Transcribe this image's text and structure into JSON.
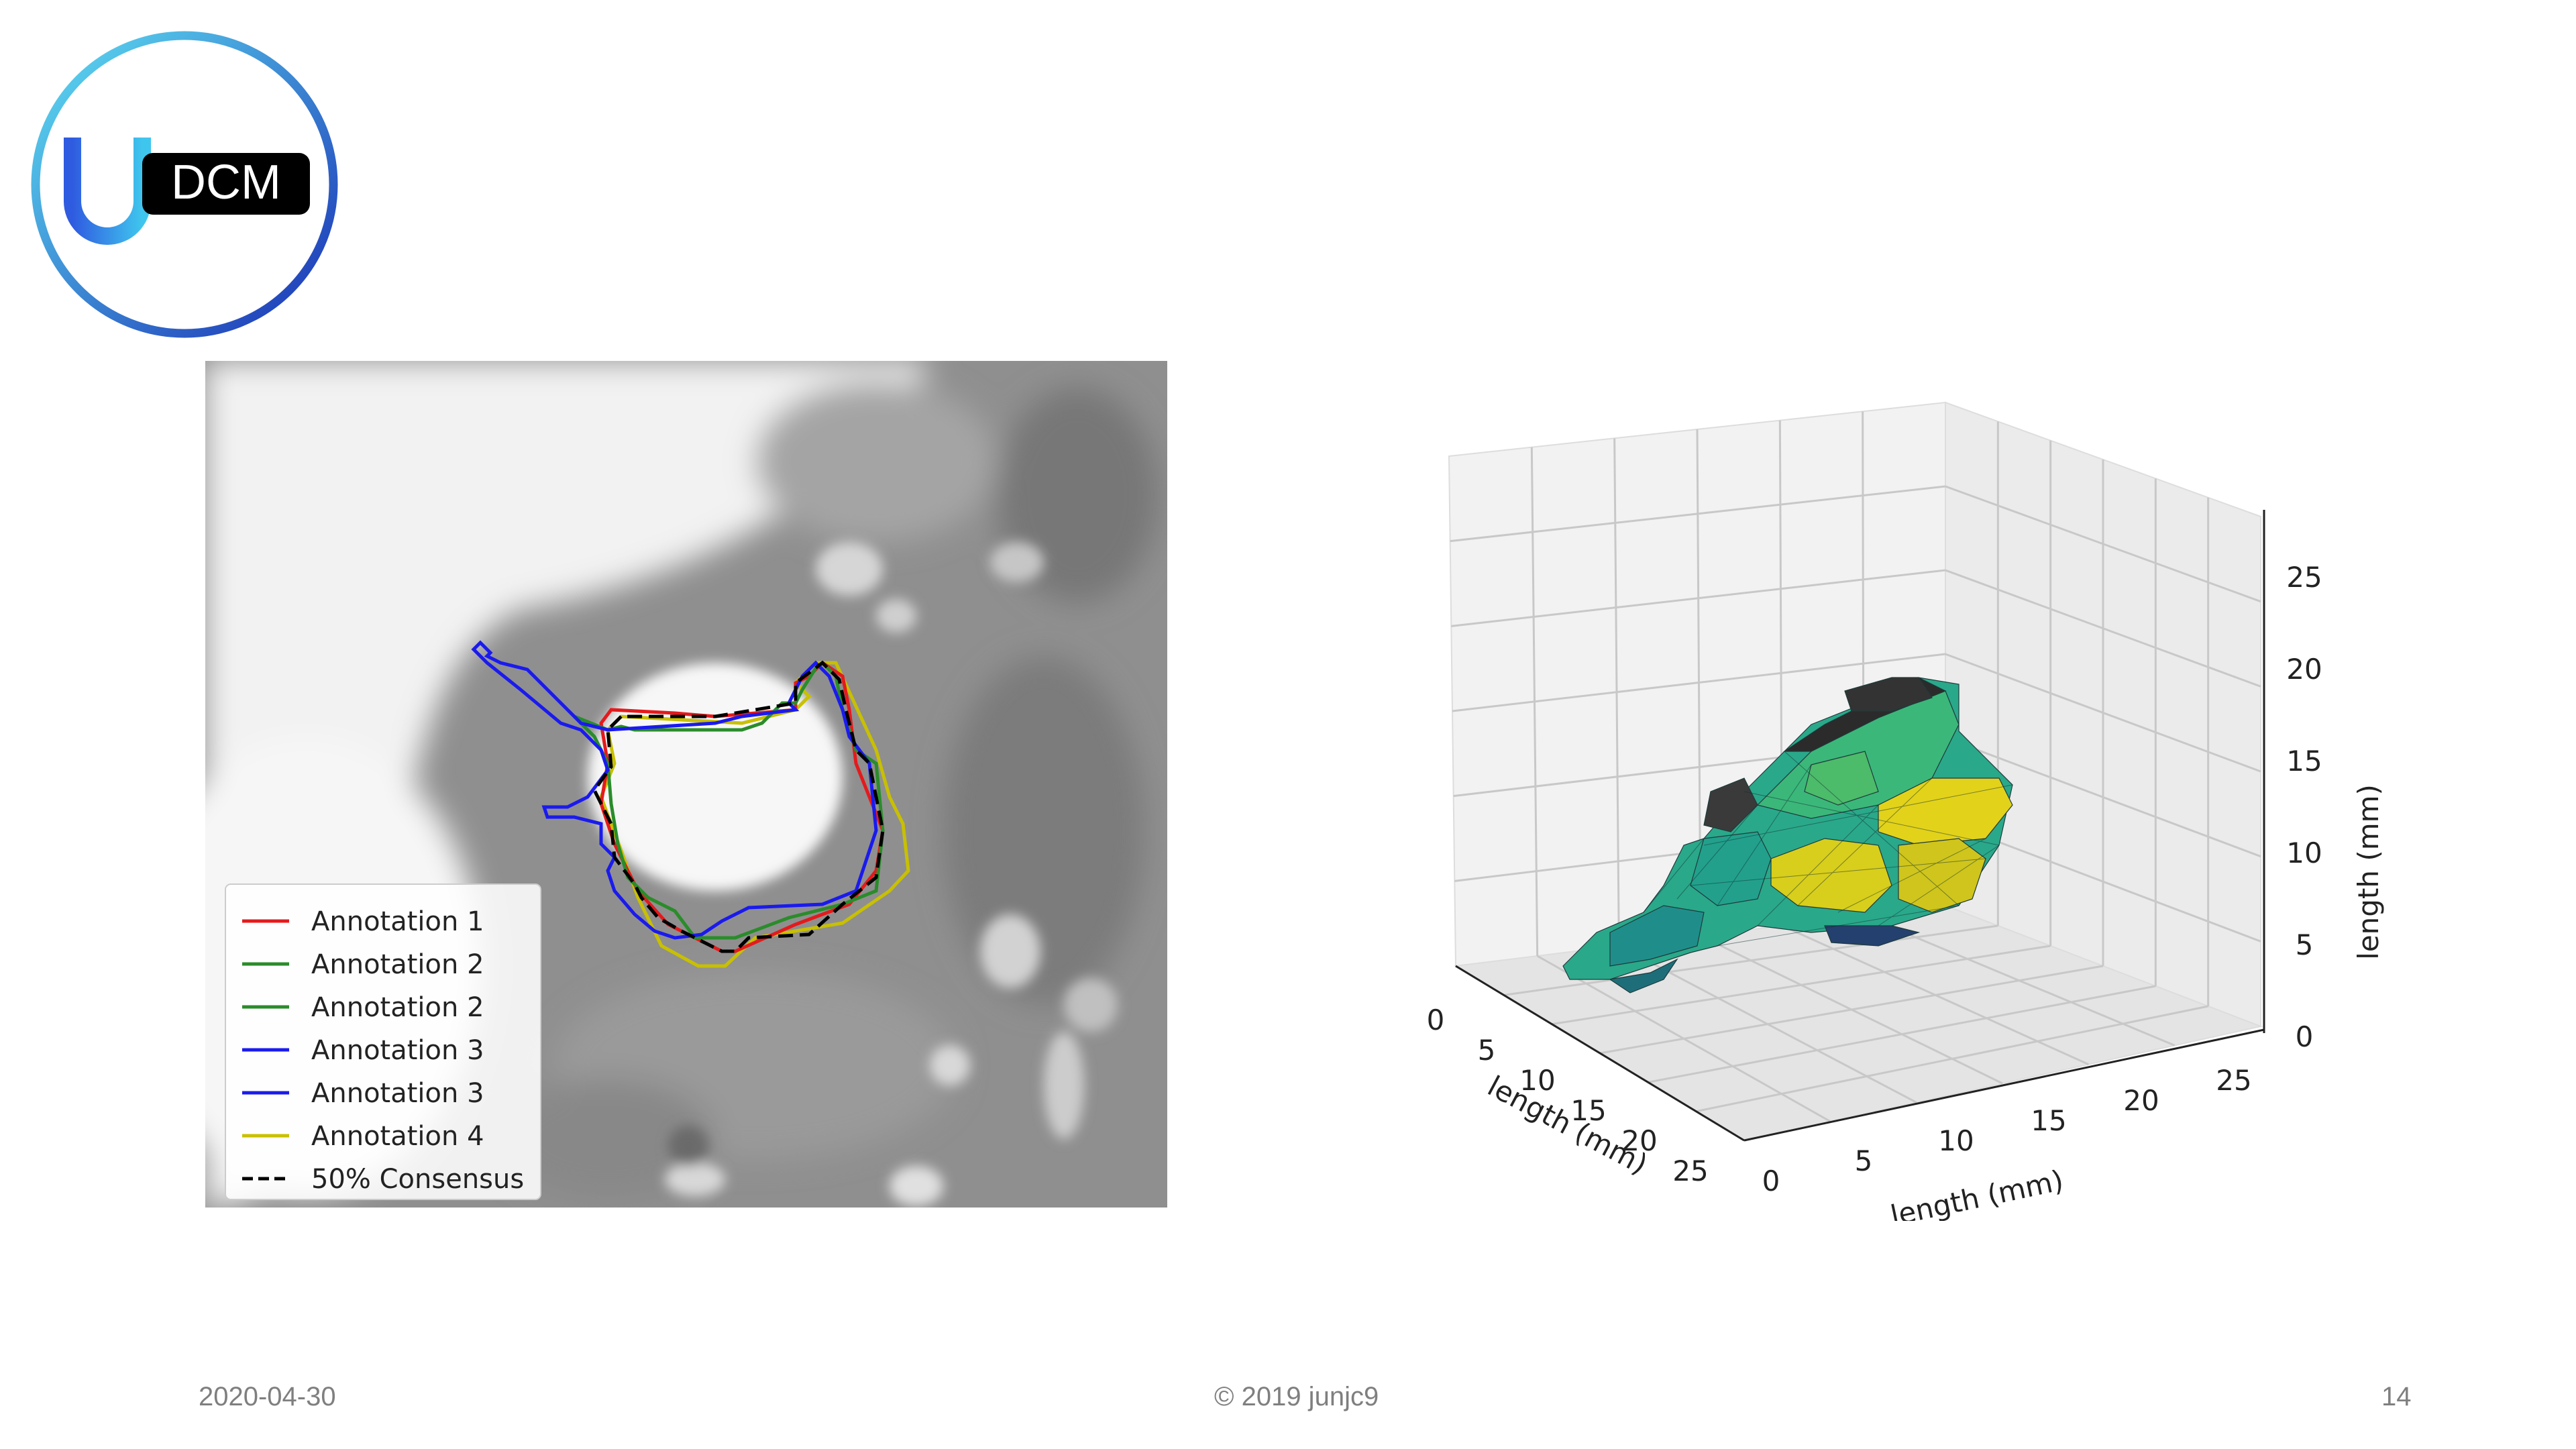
{
  "logo": {
    "text": "DCM",
    "icon": "u-magnet-icon"
  },
  "left_figure": {
    "legend": [
      {
        "label": "Annotation 1",
        "color": "#e41a1c",
        "dashed": false
      },
      {
        "label": "Annotation 2",
        "color": "#2a8c2a",
        "dashed": false
      },
      {
        "label": "Annotation 2",
        "color": "#2a8c2a",
        "dashed": false
      },
      {
        "label": "Annotation 3",
        "color": "#1a1aee",
        "dashed": false
      },
      {
        "label": "Annotation 3",
        "color": "#1a1aee",
        "dashed": false
      },
      {
        "label": "Annotation 4",
        "color": "#c8c000",
        "dashed": false
      },
      {
        "label": "50% Consensus",
        "color": "#000000",
        "dashed": true
      }
    ]
  },
  "right_figure": {
    "z_ticks": [
      "0",
      "5",
      "10",
      "15",
      "20",
      "25"
    ],
    "x_ticks": [
      "0",
      "5",
      "10",
      "15",
      "20",
      "25"
    ],
    "y_ticks": [
      "0",
      "5",
      "10",
      "15",
      "20",
      "25"
    ],
    "z_label": "length (mm)",
    "x_label": "length (mm)",
    "y_label": "length (mm)"
  },
  "footer": {
    "date": "2020-04-30",
    "copyright": "© 2019 junjc9",
    "page": "14"
  }
}
